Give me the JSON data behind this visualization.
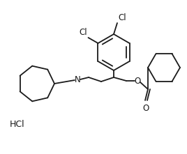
{
  "background_color": "#ffffff",
  "line_color": "#1a1a1a",
  "line_width": 1.3,
  "font_size": 8.5,
  "hcl_font_size": 9,
  "hcl_text": "HCl",
  "cl1_text": "Cl",
  "cl2_text": "Cl",
  "n_text": "N",
  "o_text": "O",
  "o2_text": "O"
}
